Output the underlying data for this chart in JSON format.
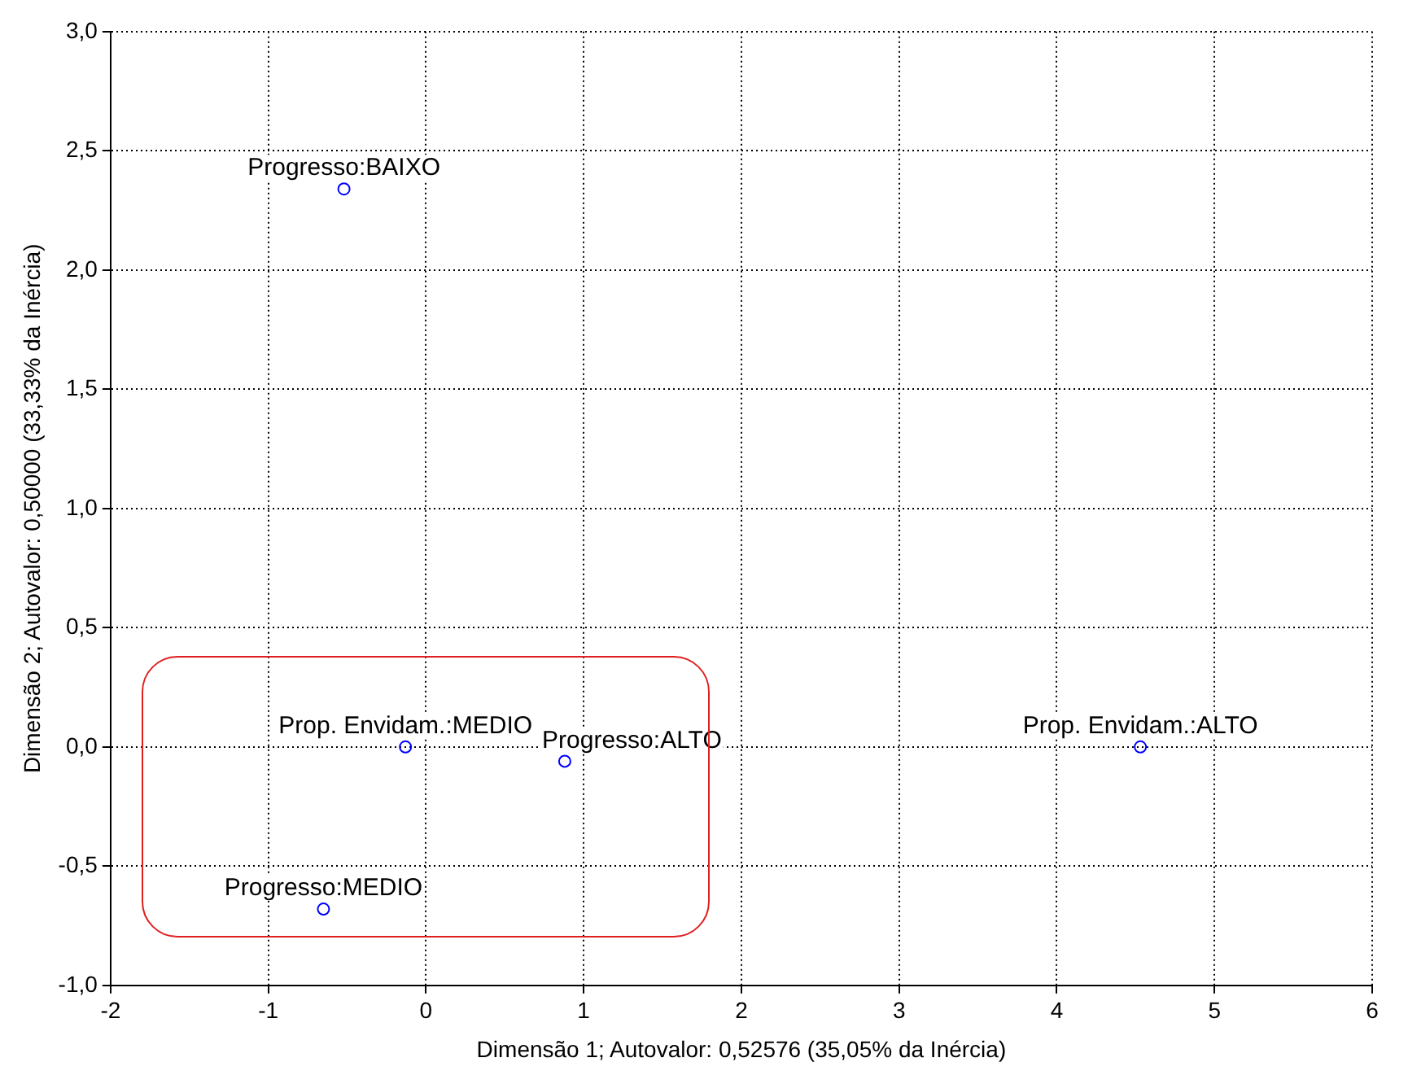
{
  "chart_data": {
    "type": "scatter",
    "xlabel": "Dimensão 1; Autovalor: 0,52576 (35,05% da Inércia)",
    "ylabel": "Dimensão 2; Autovalor: 0,50000 (33,33% da Inércia)",
    "series": [
      {
        "color": "#0000ff",
        "x": [
          -0.52,
          -0.13,
          0.88,
          4.53,
          -0.65
        ],
        "values": [
          2.34,
          0.0,
          -0.06,
          0.0,
          -0.68
        ]
      }
    ],
    "annotations": [
      {
        "text": "Progresso:BAIXO",
        "x": -0.52,
        "y": 2.34
      },
      {
        "text": "Prop. Envidam.:MEDIO",
        "x": -0.13,
        "y": 0.0
      },
      {
        "text": "Progresso:ALTO",
        "x": 0.88,
        "y": -0.06
      },
      {
        "text": "Prop. Envidam.:ALTO",
        "x": 4.53,
        "y": 0.0
      },
      {
        "text": "Progresso:MEDIO",
        "x": -0.65,
        "y": -0.68
      }
    ],
    "xlim": [
      -2,
      6
    ],
    "xticks": [
      -2,
      -1,
      0,
      1,
      2,
      3,
      4,
      5,
      6
    ],
    "ylim": [
      -1,
      3
    ],
    "yticks": [
      {
        "value": -1,
        "label": "-1,0"
      },
      {
        "value": -0.5,
        "label": "-0,5"
      },
      {
        "value": 0,
        "label": "0,0"
      },
      {
        "value": 0.5,
        "label": "0,5"
      },
      {
        "value": 1,
        "label": "1,0"
      },
      {
        "value": 1.5,
        "label": "1,5"
      },
      {
        "value": 2,
        "label": "2,0"
      },
      {
        "value": 2.5,
        "label": "2,5"
      },
      {
        "value": 3,
        "label": "3,0"
      }
    ],
    "grid": true,
    "legend": false,
    "marker": "circle"
  }
}
